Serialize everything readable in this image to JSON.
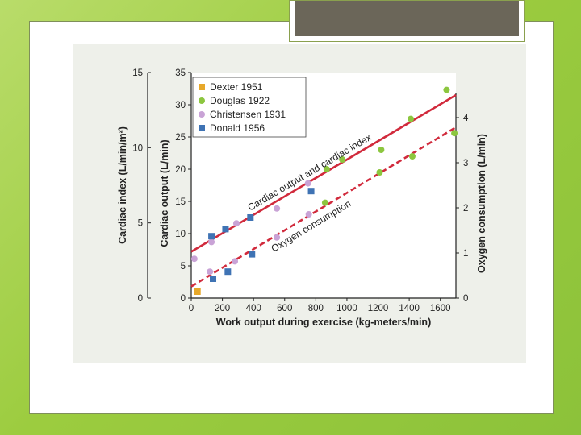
{
  "chart_data": {
    "type": "scatter",
    "xlabel": "Work output during exercise (kg-meters/min)",
    "ylabel_left_inner": "Cardiac output (L/min)",
    "ylabel_left_outer": "Cardiac index (L/min/m²)",
    "ylabel_right": "Oxygen consumption (L/min)",
    "xlim": [
      0,
      1700
    ],
    "ylim_output": [
      0,
      35
    ],
    "ylim_index": [
      0,
      15
    ],
    "ylim_oxygen": [
      0,
      5
    ],
    "x_ticks": [
      "0",
      "200",
      "400",
      "600",
      "800",
      "1000",
      "1200",
      "1400",
      "1600"
    ],
    "y_ticks_output": [
      "0",
      "5",
      "10",
      "15",
      "20",
      "25",
      "30",
      "35"
    ],
    "y_ticks_index": [
      "0",
      "5",
      "10",
      "15"
    ],
    "y_ticks_oxygen": [
      "0",
      "1",
      "2",
      "3",
      "4"
    ],
    "legend_position": "top-left",
    "series": [
      {
        "name": "Dexter 1951",
        "marker": "square",
        "color": "#e7a82a",
        "points": [
          [
            40,
            1.0
          ]
        ]
      },
      {
        "name": "Douglas 1922",
        "marker": "circle",
        "color": "#8cc63f",
        "points": [
          [
            860,
            14.8
          ],
          [
            870,
            20.0
          ],
          [
            970,
            21.5
          ],
          [
            1210,
            19.5
          ],
          [
            1220,
            23.0
          ],
          [
            1410,
            27.8
          ],
          [
            1420,
            22.0
          ],
          [
            1640,
            32.3
          ],
          [
            1690,
            25.6
          ]
        ]
      },
      {
        "name": "Christensen 1931",
        "marker": "circle",
        "color": "#c9a3d6",
        "points": [
          [
            20,
            6.1
          ],
          [
            120,
            4.1
          ],
          [
            130,
            8.7
          ],
          [
            280,
            5.7
          ],
          [
            290,
            11.6
          ],
          [
            550,
            13.9
          ],
          [
            550,
            9.4
          ],
          [
            750,
            17.8
          ],
          [
            755,
            13.0
          ]
        ]
      },
      {
        "name": "Donald 1956",
        "marker": "square",
        "color": "#3f73b4",
        "points": [
          [
            130,
            9.6
          ],
          [
            140,
            3.0
          ],
          [
            220,
            10.7
          ],
          [
            235,
            4.1
          ],
          [
            380,
            12.5
          ],
          [
            390,
            6.8
          ],
          [
            770,
            16.6
          ]
        ]
      }
    ],
    "trend_lines": [
      {
        "label": "Cardiac output and cardiac index",
        "style": "solid",
        "color": "#d12a3c",
        "points": [
          [
            0,
            7.2
          ],
          [
            1700,
            31.5
          ]
        ]
      },
      {
        "label": "Oxygen consumption",
        "style": "dashed",
        "color": "#d12a3c",
        "points": [
          [
            0,
            1.8
          ],
          [
            1700,
            26.5
          ]
        ]
      }
    ]
  }
}
